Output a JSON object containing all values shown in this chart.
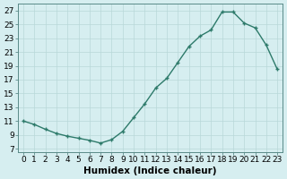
{
  "x": [
    0,
    1,
    2,
    3,
    4,
    5,
    6,
    7,
    8,
    9,
    10,
    11,
    12,
    13,
    14,
    15,
    16,
    17,
    18,
    19,
    20,
    21,
    22,
    23
  ],
  "y": [
    11.0,
    10.5,
    9.8,
    9.2,
    8.8,
    8.5,
    8.2,
    7.8,
    8.3,
    9.5,
    11.5,
    13.5,
    15.8,
    17.2,
    19.5,
    21.8,
    23.3,
    24.2,
    26.8,
    26.8,
    25.2,
    24.5,
    22.0,
    18.5
  ],
  "line_color": "#2d7a6a",
  "marker": "+",
  "bg_color": "#d6eef0",
  "grid_color": "#b8d8d8",
  "xlabel": "Humidex (Indice chaleur)",
  "xlim": [
    -0.5,
    23.5
  ],
  "ylim": [
    6.5,
    28
  ],
  "yticks": [
    7,
    9,
    11,
    13,
    15,
    17,
    19,
    21,
    23,
    25,
    27
  ],
  "xticks": [
    0,
    1,
    2,
    3,
    4,
    5,
    6,
    7,
    8,
    9,
    10,
    11,
    12,
    13,
    14,
    15,
    16,
    17,
    18,
    19,
    20,
    21,
    22,
    23
  ],
  "xlabel_fontsize": 7.5,
  "tick_fontsize": 6.5,
  "linewidth": 1.0,
  "markersize": 3.5,
  "markeredgewidth": 1.0
}
